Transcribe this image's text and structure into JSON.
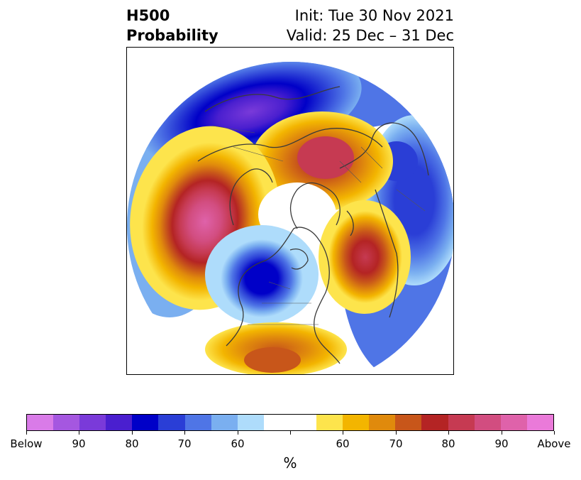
{
  "title": {
    "left_line1": "H500",
    "left_line2": "Probability",
    "right_line1": "Init: Tue 30 Nov 2021",
    "right_line2": "Valid: 25 Dec – 31 Dec"
  },
  "colorbar": {
    "units": "%",
    "below_colors": [
      "#d97be8",
      "#a557e0",
      "#7a3ad9",
      "#4a1fcf",
      "#0000c8",
      "#2a3ed6",
      "#4f75e6",
      "#7aaff0",
      "#aedcfb"
    ],
    "neutral_color": "#ffffff",
    "above_colors": [
      "#fde44c",
      "#f3b500",
      "#e08a0c",
      "#c8561a",
      "#b42424",
      "#c63a52",
      "#d24d80",
      "#df62aa",
      "#ea7ad9"
    ],
    "tick_labels": [
      "Below",
      "90",
      "80",
      "70",
      "60",
      "60",
      "70",
      "80",
      "90",
      "Above"
    ]
  },
  "map": {
    "projection": "north-polar-stereographic",
    "anomalies": [
      {
        "region": "North Pacific / Alaska",
        "sign": "above"
      },
      {
        "region": "Canada / Central North America",
        "sign": "below"
      },
      {
        "region": "Southern United States",
        "sign": "above"
      },
      {
        "region": "North Atlantic",
        "sign": "above"
      },
      {
        "region": "Northern Europe / Scandinavia",
        "sign": "above"
      },
      {
        "region": "Western Russia",
        "sign": "below"
      },
      {
        "region": "Northern Asia",
        "sign": "below"
      }
    ]
  }
}
